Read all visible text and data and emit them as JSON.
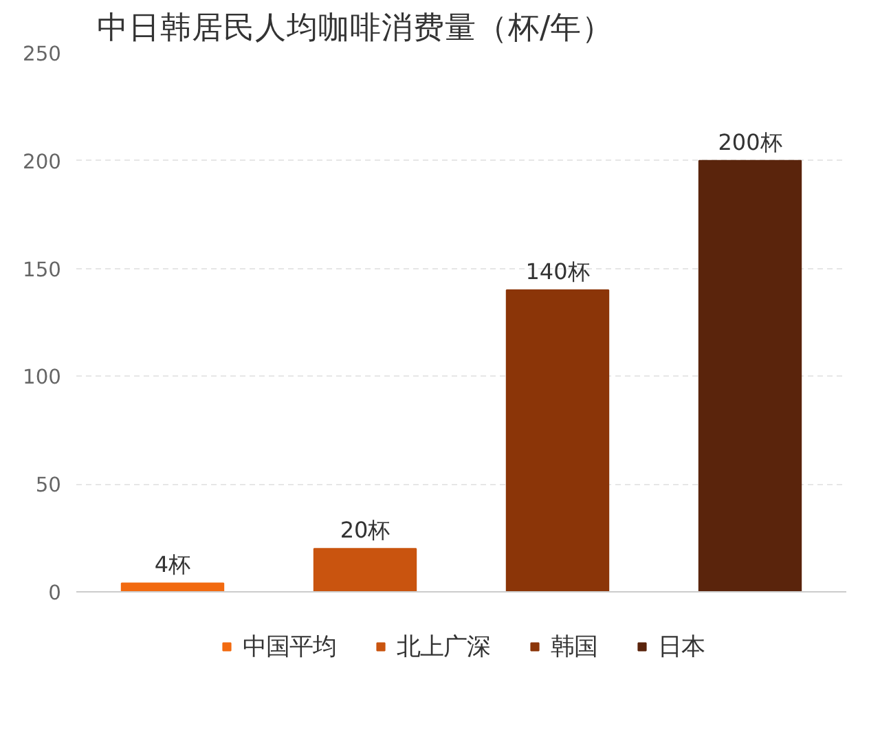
{
  "chart_data": {
    "type": "bar",
    "title": "中日韩居民人均咖啡消费量（杯/年）",
    "categories": [
      null,
      null,
      null,
      null
    ],
    "ylim": [
      0,
      250
    ],
    "yticks": [
      0,
      50,
      100,
      150,
      200,
      250
    ],
    "grid": "y",
    "legend": "bottom",
    "series": [
      {
        "name": "中国平均",
        "color": "#f26a10",
        "values": [
          4,
          null,
          null,
          null
        ],
        "value_labels": [
          "4杯",
          null,
          null,
          null
        ]
      },
      {
        "name": "北上广深",
        "color": "#c9540f",
        "values": [
          null,
          20,
          null,
          null
        ],
        "value_labels": [
          null,
          "20杯",
          null,
          null
        ]
      },
      {
        "name": "韩国",
        "color": "#8b3508",
        "values": [
          null,
          null,
          140,
          null
        ],
        "value_labels": [
          null,
          null,
          "140杯",
          null
        ]
      },
      {
        "name": "日本",
        "color": "#5a240c",
        "values": [
          null,
          null,
          null,
          200
        ],
        "value_labels": [
          null,
          null,
          null,
          "200杯"
        ]
      }
    ]
  }
}
